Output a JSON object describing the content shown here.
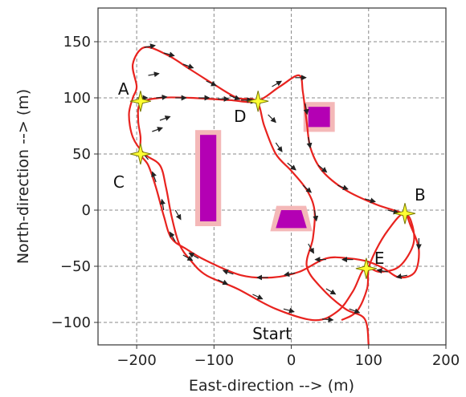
{
  "chart_data": {
    "type": "scatter",
    "title": "",
    "xlabel": "East-direction --> (m)",
    "ylabel": "North-direction --> (m)",
    "xlim": [
      -250,
      200
    ],
    "ylim": [
      -120,
      180
    ],
    "xticks": [
      -200,
      -100,
      0,
      100,
      200
    ],
    "yticks": [
      -100,
      -50,
      0,
      50,
      100,
      150
    ],
    "xtick_labels": [
      "−200",
      "−100",
      "0",
      "100",
      "200"
    ],
    "ytick_labels": [
      "−100",
      "−50",
      "0",
      "50",
      "100",
      "150"
    ],
    "grid": true,
    "grid_style": "dashed",
    "trajectory": {
      "color": "#e8231f",
      "points": [
        [
          65,
          -98
        ],
        [
          85,
          -90
        ],
        [
          98,
          -70
        ],
        [
          100,
          -52
        ],
        [
          110,
          -35
        ],
        [
          125,
          -18
        ],
        [
          145,
          -3
        ],
        [
          155,
          -15
        ],
        [
          165,
          -35
        ],
        [
          160,
          -55
        ],
        [
          140,
          -60
        ],
        [
          120,
          -52
        ],
        [
          100,
          -46
        ],
        [
          75,
          -43
        ],
        [
          45,
          -43
        ],
        [
          10,
          -55
        ],
        [
          -25,
          -60
        ],
        [
          -65,
          -58
        ],
        [
          -110,
          -45
        ],
        [
          -135,
          -35
        ],
        [
          -155,
          -25
        ],
        [
          -165,
          -5
        ],
        [
          -175,
          20
        ],
        [
          -185,
          40
        ],
        [
          -195,
          50
        ],
        [
          -195,
          65
        ],
        [
          -198,
          80
        ],
        [
          -195,
          95
        ],
        [
          -170,
          100
        ],
        [
          -130,
          100
        ],
        [
          -80,
          98
        ],
        [
          -45,
          97
        ],
        [
          -15,
          110
        ],
        [
          10,
          120
        ],
        [
          15,
          105
        ],
        [
          20,
          78
        ],
        [
          25,
          55
        ],
        [
          40,
          35
        ],
        [
          70,
          18
        ],
        [
          110,
          5
        ],
        [
          145,
          -3
        ],
        [
          155,
          -10
        ],
        [
          158,
          -30
        ],
        [
          140,
          -50
        ],
        [
          115,
          -55
        ],
        [
          95,
          -52
        ],
        [
          80,
          -72
        ],
        [
          60,
          -90
        ],
        [
          30,
          -98
        ],
        [
          -20,
          -88
        ],
        [
          -70,
          -70
        ],
        [
          -110,
          -58
        ],
        [
          -130,
          -45
        ],
        [
          -145,
          -30
        ],
        [
          -155,
          -5
        ],
        [
          -162,
          20
        ],
        [
          -170,
          40
        ],
        [
          -190,
          50
        ],
        [
          -205,
          65
        ],
        [
          -210,
          85
        ],
        [
          -205,
          100
        ],
        [
          -200,
          110
        ],
        [
          -205,
          130
        ],
        [
          -190,
          145
        ],
        [
          -160,
          138
        ],
        [
          -130,
          125
        ],
        [
          -100,
          112
        ],
        [
          -70,
          100
        ],
        [
          -45,
          97
        ],
        [
          -35,
          75
        ],
        [
          -20,
          50
        ],
        [
          0,
          35
        ],
        [
          20,
          18
        ],
        [
          30,
          0
        ],
        [
          28,
          -25
        ],
        [
          20,
          -50
        ],
        [
          40,
          -70
        ],
        [
          70,
          -88
        ],
        [
          95,
          -97
        ],
        [
          100,
          -120
        ]
      ]
    },
    "waypoints": [
      {
        "label": "A",
        "x": -195,
        "y": 97
      },
      {
        "label": "B",
        "x": 147,
        "y": -3
      },
      {
        "label": "C",
        "x": -195,
        "y": 50
      },
      {
        "label": "D",
        "x": -43,
        "y": 97
      },
      {
        "label": "E",
        "x": 97,
        "y": -52
      }
    ],
    "waypoint_color": "#ffff33",
    "annotation": {
      "text": "Start",
      "x": -25,
      "y": -110
    },
    "obstacles": [
      {
        "shape": "rect",
        "x0": -118,
        "x1": -97,
        "y0": -10,
        "y1": 67,
        "fill": "#b400b4",
        "halo": "#f4b8b8"
      },
      {
        "shape": "rect",
        "x0": 22,
        "x1": 50,
        "y0": 74,
        "y1": 92,
        "fill": "#b400b4",
        "halo": "#f4b8b8"
      },
      {
        "shape": "trapezoid",
        "points": [
          [
            -13,
            0
          ],
          [
            13,
            0
          ],
          [
            20,
            -16
          ],
          [
            -20,
            -16
          ]
        ],
        "fill": "#b400b4",
        "halo": "#f4b8b8"
      }
    ],
    "arrows": {
      "color": "#222222",
      "length_m": 14,
      "items": [
        [
          -190,
          145,
          10
        ],
        [
          -165,
          140,
          -15
        ],
        [
          -140,
          130,
          -20
        ],
        [
          -110,
          115,
          -25
        ],
        [
          -80,
          102,
          -20
        ],
        [
          -60,
          98,
          -10
        ],
        [
          -30,
          85,
          -45
        ],
        [
          -20,
          60,
          -55
        ],
        [
          -5,
          42,
          -40
        ],
        [
          15,
          22,
          -40
        ],
        [
          30,
          0,
          -80
        ],
        [
          22,
          -30,
          -60
        ],
        [
          45,
          -70,
          -30
        ],
        [
          75,
          -88,
          -20
        ],
        [
          -185,
          120,
          10
        ],
        [
          -175,
          100,
          5
        ],
        [
          -150,
          100,
          0
        ],
        [
          -120,
          100,
          0
        ],
        [
          -95,
          99,
          0
        ],
        [
          -65,
          98,
          0
        ],
        [
          -25,
          110,
          30
        ],
        [
          5,
          118,
          0
        ],
        [
          18,
          95,
          -80
        ],
        [
          22,
          65,
          -80
        ],
        [
          35,
          40,
          -40
        ],
        [
          60,
          22,
          -20
        ],
        [
          95,
          10,
          -15
        ],
        [
          125,
          0,
          -15
        ],
        [
          165,
          -25,
          -90
        ],
        [
          150,
          -58,
          -170
        ],
        [
          125,
          -55,
          170
        ],
        [
          80,
          -44,
          180
        ],
        [
          45,
          -44,
          180
        ],
        [
          5,
          -56,
          190
        ],
        [
          -30,
          -60,
          180
        ],
        [
          -75,
          -57,
          160
        ],
        [
          -120,
          -43,
          150
        ],
        [
          -150,
          -28,
          120
        ],
        [
          -165,
          0,
          100
        ],
        [
          -175,
          25,
          110
        ],
        [
          -185,
          45,
          130
        ],
        [
          -180,
          70,
          20
        ],
        [
          -170,
          80,
          20
        ],
        [
          -150,
          0,
          -60
        ],
        [
          -140,
          -40,
          -30
        ],
        [
          -95,
          -62,
          -25
        ],
        [
          -50,
          -75,
          -25
        ],
        [
          -10,
          -88,
          -15
        ],
        [
          40,
          -97,
          -5
        ],
        [
          -200,
          100,
          0
        ]
      ]
    }
  }
}
